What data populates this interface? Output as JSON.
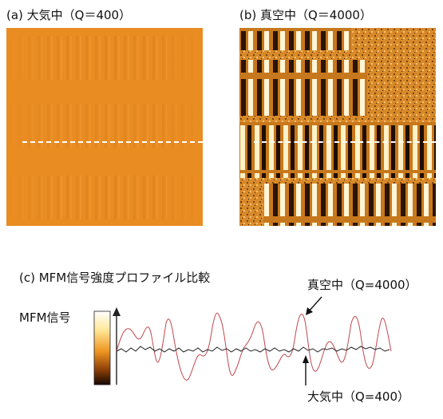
{
  "panel_a": {
    "caption": "(a) 大気中（Q＝400）"
  },
  "panel_b": {
    "caption": "(b) 真空中（Q＝4000）"
  },
  "panel_c": {
    "caption": "(c) MFM信号強度プロファイル比較",
    "ylabel": "MFM信号",
    "vacuum_label": "真空中（Q=4000）",
    "air_label": "大気中（Q=400）"
  },
  "colors": {
    "air_image_base": "#e98c22",
    "vacuum_dark": "#2a1404",
    "vacuum_light": "#fff6d8",
    "vacuum_curve": "#c0474f",
    "air_curve": "#222222"
  }
}
